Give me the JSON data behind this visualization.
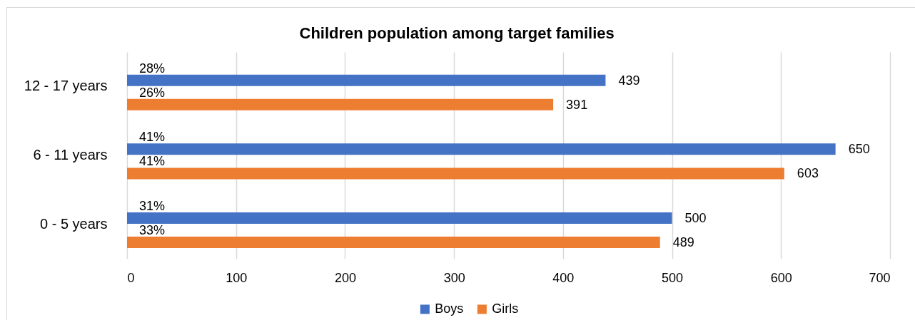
{
  "chart_data": {
    "type": "bar",
    "title": "Children population among target families",
    "orientation": "horizontal",
    "categories": [
      "12 - 17 years",
      "6 - 11 years",
      "0 - 5 years"
    ],
    "series": [
      {
        "name": "Boys",
        "color": "#4472c4",
        "values": [
          439,
          650,
          500
        ]
      },
      {
        "name": "Girls",
        "color": "#ed7d31",
        "values": [
          391,
          603,
          489
        ]
      }
    ],
    "annotations": [
      {
        "text": "28%",
        "y": "12 - 17 years"
      },
      {
        "text": "26%",
        "y": "12 - 17 years"
      },
      {
        "text": "41%",
        "y": "6 - 11 years"
      },
      {
        "text": "41%",
        "y": "6 - 11 years"
      },
      {
        "text": "31%",
        "y": "0 - 5 years"
      },
      {
        "text": "33%",
        "y": "0 - 5 years"
      }
    ],
    "xlim": [
      0,
      700
    ],
    "xticks": [
      0,
      100,
      200,
      300,
      400,
      500,
      600,
      700
    ],
    "grid": "x",
    "legend": "bottom",
    "data_labels": true
  }
}
